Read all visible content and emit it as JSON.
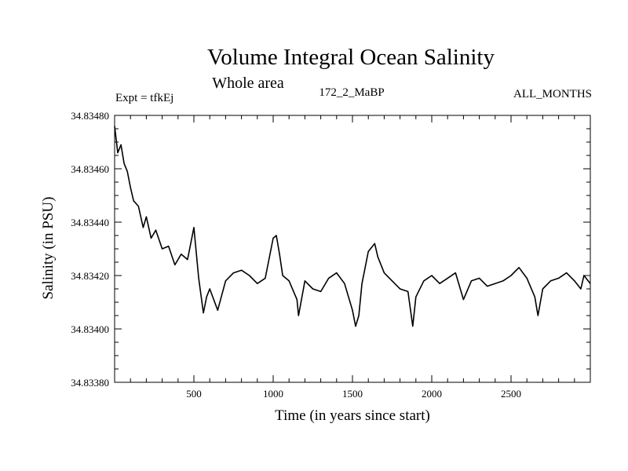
{
  "chart_data": {
    "type": "line",
    "title": "Volume Integral Ocean Salinity",
    "subtitle": "Whole area",
    "expt_label": "Expt = tfkEj",
    "run_label": "172_2_MaBP",
    "period_label": "ALL_MONTHS",
    "xlabel": "Time (in years since start)",
    "ylabel": "Salinity (in PSU)",
    "xlim": [
      0,
      3000
    ],
    "ylim": [
      34.8338,
      34.8348
    ],
    "xticks": [
      500,
      1000,
      1500,
      2000,
      2500
    ],
    "yticks": [
      "34.83380",
      "34.83400",
      "34.83420",
      "34.83440",
      "34.83460",
      "34.83480"
    ],
    "grid": false,
    "series": [
      {
        "color": "#000000",
        "x": [
          0,
          20,
          40,
          60,
          80,
          100,
          120,
          150,
          180,
          200,
          230,
          260,
          300,
          340,
          380,
          420,
          460,
          500,
          530,
          560,
          580,
          600,
          650,
          700,
          750,
          800,
          850,
          900,
          950,
          1000,
          1020,
          1040,
          1060,
          1100,
          1150,
          1160,
          1200,
          1250,
          1300,
          1350,
          1400,
          1450,
          1500,
          1520,
          1540,
          1560,
          1600,
          1640,
          1660,
          1700,
          1750,
          1800,
          1850,
          1880,
          1900,
          1950,
          2000,
          2050,
          2100,
          2150,
          2200,
          2250,
          2300,
          2350,
          2400,
          2450,
          2500,
          2550,
          2600,
          2650,
          2670,
          2700,
          2750,
          2800,
          2850,
          2900,
          2940,
          2960,
          3000
        ],
        "y": [
          34.83476,
          34.83466,
          34.83469,
          34.83462,
          34.83459,
          34.83453,
          34.83448,
          34.83446,
          34.83438,
          34.83442,
          34.83434,
          34.83437,
          34.8343,
          34.83431,
          34.83424,
          34.83428,
          34.83426,
          34.83438,
          34.83419,
          34.83406,
          34.83412,
          34.83415,
          34.83407,
          34.83418,
          34.83421,
          34.83422,
          34.8342,
          34.83417,
          34.83419,
          34.83434,
          34.83435,
          34.83428,
          34.8342,
          34.83418,
          34.83411,
          34.83405,
          34.83418,
          34.83415,
          34.83414,
          34.83419,
          34.83421,
          34.83417,
          34.83407,
          34.83401,
          34.83405,
          34.83417,
          34.83429,
          34.83432,
          34.83427,
          34.83421,
          34.83418,
          34.83415,
          34.83414,
          34.83401,
          34.83412,
          34.83418,
          34.8342,
          34.83417,
          34.83419,
          34.83421,
          34.83411,
          34.83418,
          34.83419,
          34.83416,
          34.83417,
          34.83418,
          34.8342,
          34.83423,
          34.83419,
          34.83412,
          34.83405,
          34.83415,
          34.83418,
          34.83419,
          34.83421,
          34.83418,
          34.83415,
          34.8342,
          34.83417
        ]
      }
    ]
  }
}
